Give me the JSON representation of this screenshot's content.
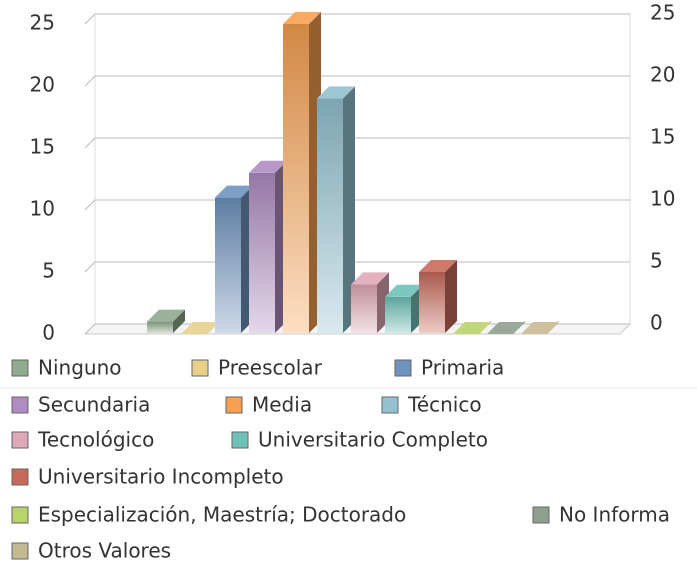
{
  "chart_data": {
    "type": "bar",
    "series": [
      {
        "name": "Ninguno",
        "color": "#8faa8c",
        "values": [
          1
        ]
      },
      {
        "name": "Preescolar",
        "color": "#e8d08c",
        "values": [
          0
        ]
      },
      {
        "name": "Primaria",
        "color": "#6f93bf",
        "values": [
          11
        ]
      },
      {
        "name": "Secundaria",
        "color": "#b08cc2",
        "values": [
          13
        ]
      },
      {
        "name": "Media",
        "color": "#f7a050",
        "values": [
          25
        ]
      },
      {
        "name": "Técnico",
        "color": "#93c1d0",
        "values": [
          19
        ]
      },
      {
        "name": "Tecnológico",
        "color": "#e0a8b8",
        "values": [
          4
        ]
      },
      {
        "name": "Universitario Completo",
        "color": "#6fc1b7",
        "values": [
          3
        ]
      },
      {
        "name": "Universitario Incompleto",
        "color": "#c86a5a",
        "values": [
          5
        ]
      },
      {
        "name": "Especialización, Maestría; Doctorado",
        "color": "#b9d46a",
        "values": [
          0
        ]
      },
      {
        "name": "No Informa",
        "color": "#8f9f8f",
        "values": [
          0
        ]
      },
      {
        "name": "Otros Valores",
        "color": "#c7b98f",
        "values": [
          0
        ]
      }
    ],
    "ylim": [
      0,
      25
    ],
    "yticks": [
      0,
      5,
      10,
      15,
      20,
      25
    ],
    "y2lim": [
      0,
      25
    ],
    "y2ticks": [
      0,
      5,
      10,
      15,
      20,
      25
    ],
    "grid": true
  }
}
